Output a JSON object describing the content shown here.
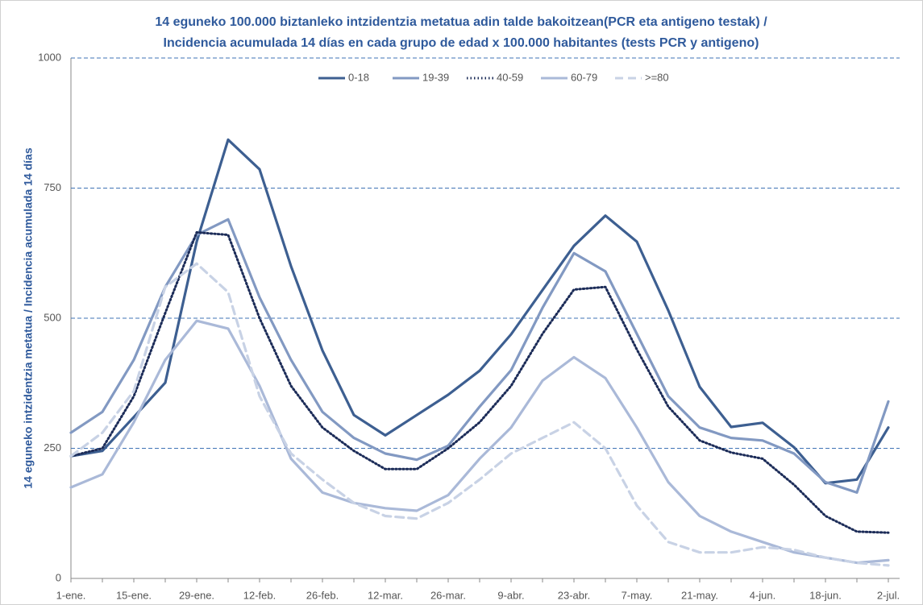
{
  "chart_data": {
    "type": "line",
    "title": [
      "14 eguneko 100.000 biztanleko intzidentzia metatua adin talde bakoitzean(PCR eta antigeno testak) /",
      "Incidencia acumulada 14 días en cada grupo de edad x 100.000 habitantes (tests PCR y antigeno)"
    ],
    "y_label": "14 eguneko intzidentzia metatua / Incidencia acumulada 14 días",
    "categories": [
      "1-ene.",
      null,
      "15-ene.",
      null,
      "29-ene.",
      null,
      "12-feb.",
      null,
      "26-feb.",
      null,
      "12-mar.",
      null,
      "26-mar.",
      null,
      "9-abr.",
      null,
      "23-abr.",
      null,
      "7-may.",
      null,
      "21-may.",
      null,
      "4-jun.",
      null,
      "18-jun.",
      null,
      "2-jul."
    ],
    "series": [
      {
        "name": "0-18",
        "color": "#3d5f91",
        "style": "solid",
        "values": [
          235,
          245,
          310,
          376,
          647,
          843,
          786,
          600,
          438,
          314,
          275,
          314,
          353,
          399,
          469,
          554,
          639,
          697,
          647,
          515,
          368,
          291,
          299,
          252,
          183,
          190,
          290
        ]
      },
      {
        "name": "19-39",
        "color": "#8299c2",
        "style": "solid",
        "values": [
          280,
          320,
          420,
          560,
          660,
          690,
          540,
          420,
          320,
          270,
          240,
          228,
          255,
          330,
          400,
          520,
          625,
          590,
          470,
          350,
          290,
          270,
          265,
          240,
          185,
          165,
          340
        ]
      },
      {
        "name": "40-59",
        "color": "#1c2c58",
        "style": "dotted",
        "values": [
          235,
          250,
          350,
          510,
          665,
          660,
          500,
          370,
          290,
          245,
          210,
          210,
          250,
          300,
          370,
          470,
          555,
          560,
          440,
          330,
          265,
          242,
          230,
          180,
          120,
          90,
          88
        ]
      },
      {
        "name": "60-79",
        "color": "#aab9d8",
        "style": "solid",
        "values": [
          175,
          200,
          300,
          420,
          495,
          480,
          370,
          230,
          165,
          145,
          135,
          130,
          160,
          230,
          290,
          380,
          425,
          385,
          290,
          185,
          120,
          90,
          70,
          50,
          40,
          30,
          35
        ]
      },
      {
        "name": ">=80",
        "color": "#c8d2e5",
        "style": "dashed",
        "values": [
          235,
          280,
          360,
          560,
          605,
          550,
          350,
          240,
          190,
          145,
          120,
          115,
          145,
          190,
          240,
          270,
          300,
          250,
          140,
          70,
          50,
          50,
          60,
          55,
          40,
          30,
          25
        ]
      }
    ],
    "ylim": [
      0,
      1000
    ],
    "yticks": [
      0,
      250,
      500,
      750,
      1000
    ],
    "grid": true,
    "legend": "top"
  }
}
